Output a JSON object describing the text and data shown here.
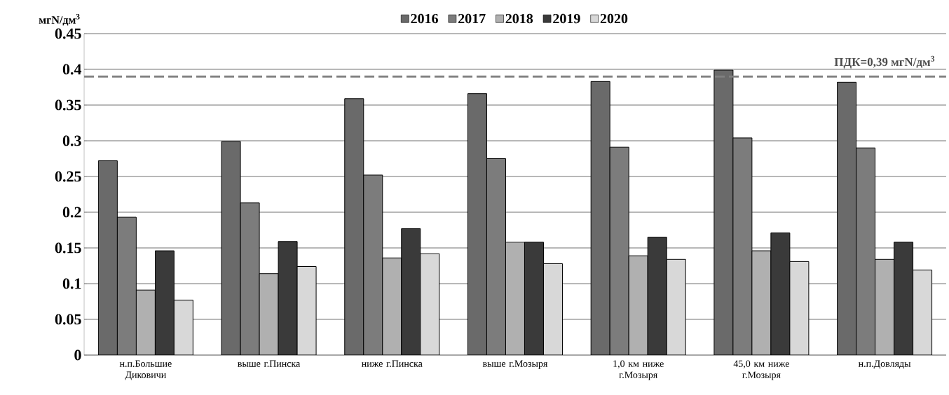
{
  "chart_data": {
    "type": "bar",
    "ylabel": "мгN/дм$^{3}$",
    "categories": [
      "н.п.Большие Диковичи",
      "выше г.Пинска",
      "ниже г.Пинска",
      "выше г.Мозыря",
      "1,0 км ниже г.Мозыря",
      "45,0 км ниже г.Мозыря",
      "н.п.Довляды"
    ],
    "series": [
      {
        "name": "2016",
        "color": "#6a6a6a",
        "values": [
          0.272,
          0.299,
          0.359,
          0.366,
          0.383,
          0.399,
          0.382
        ]
      },
      {
        "name": "2017",
        "color": "#7c7c7c",
        "values": [
          0.193,
          0.213,
          0.252,
          0.275,
          0.291,
          0.304,
          0.29
        ]
      },
      {
        "name": "2018",
        "color": "#b0b0b0",
        "values": [
          0.091,
          0.114,
          0.136,
          0.158,
          0.139,
          0.146,
          0.134
        ]
      },
      {
        "name": "2019",
        "color": "#3a3a3a",
        "values": [
          0.146,
          0.159,
          0.177,
          0.158,
          0.165,
          0.171,
          0.158
        ]
      },
      {
        "name": "2020",
        "color": "#d8d8d8",
        "values": [
          0.077,
          0.124,
          0.142,
          0.128,
          0.134,
          0.131,
          0.119
        ]
      }
    ],
    "ylim": [
      0,
      0.45
    ],
    "yticks": [
      0,
      0.05,
      0.1,
      0.15,
      0.2,
      0.25,
      0.3,
      0.35,
      0.4,
      0.45
    ],
    "grid": "y",
    "legend": "top",
    "ref_lines": [
      {
        "axis": "y",
        "value": 0.39,
        "label": "ПДК=0,39 мгN/дм$^{3}$",
        "color": "#808080",
        "line_style": "dashed"
      }
    ]
  }
}
